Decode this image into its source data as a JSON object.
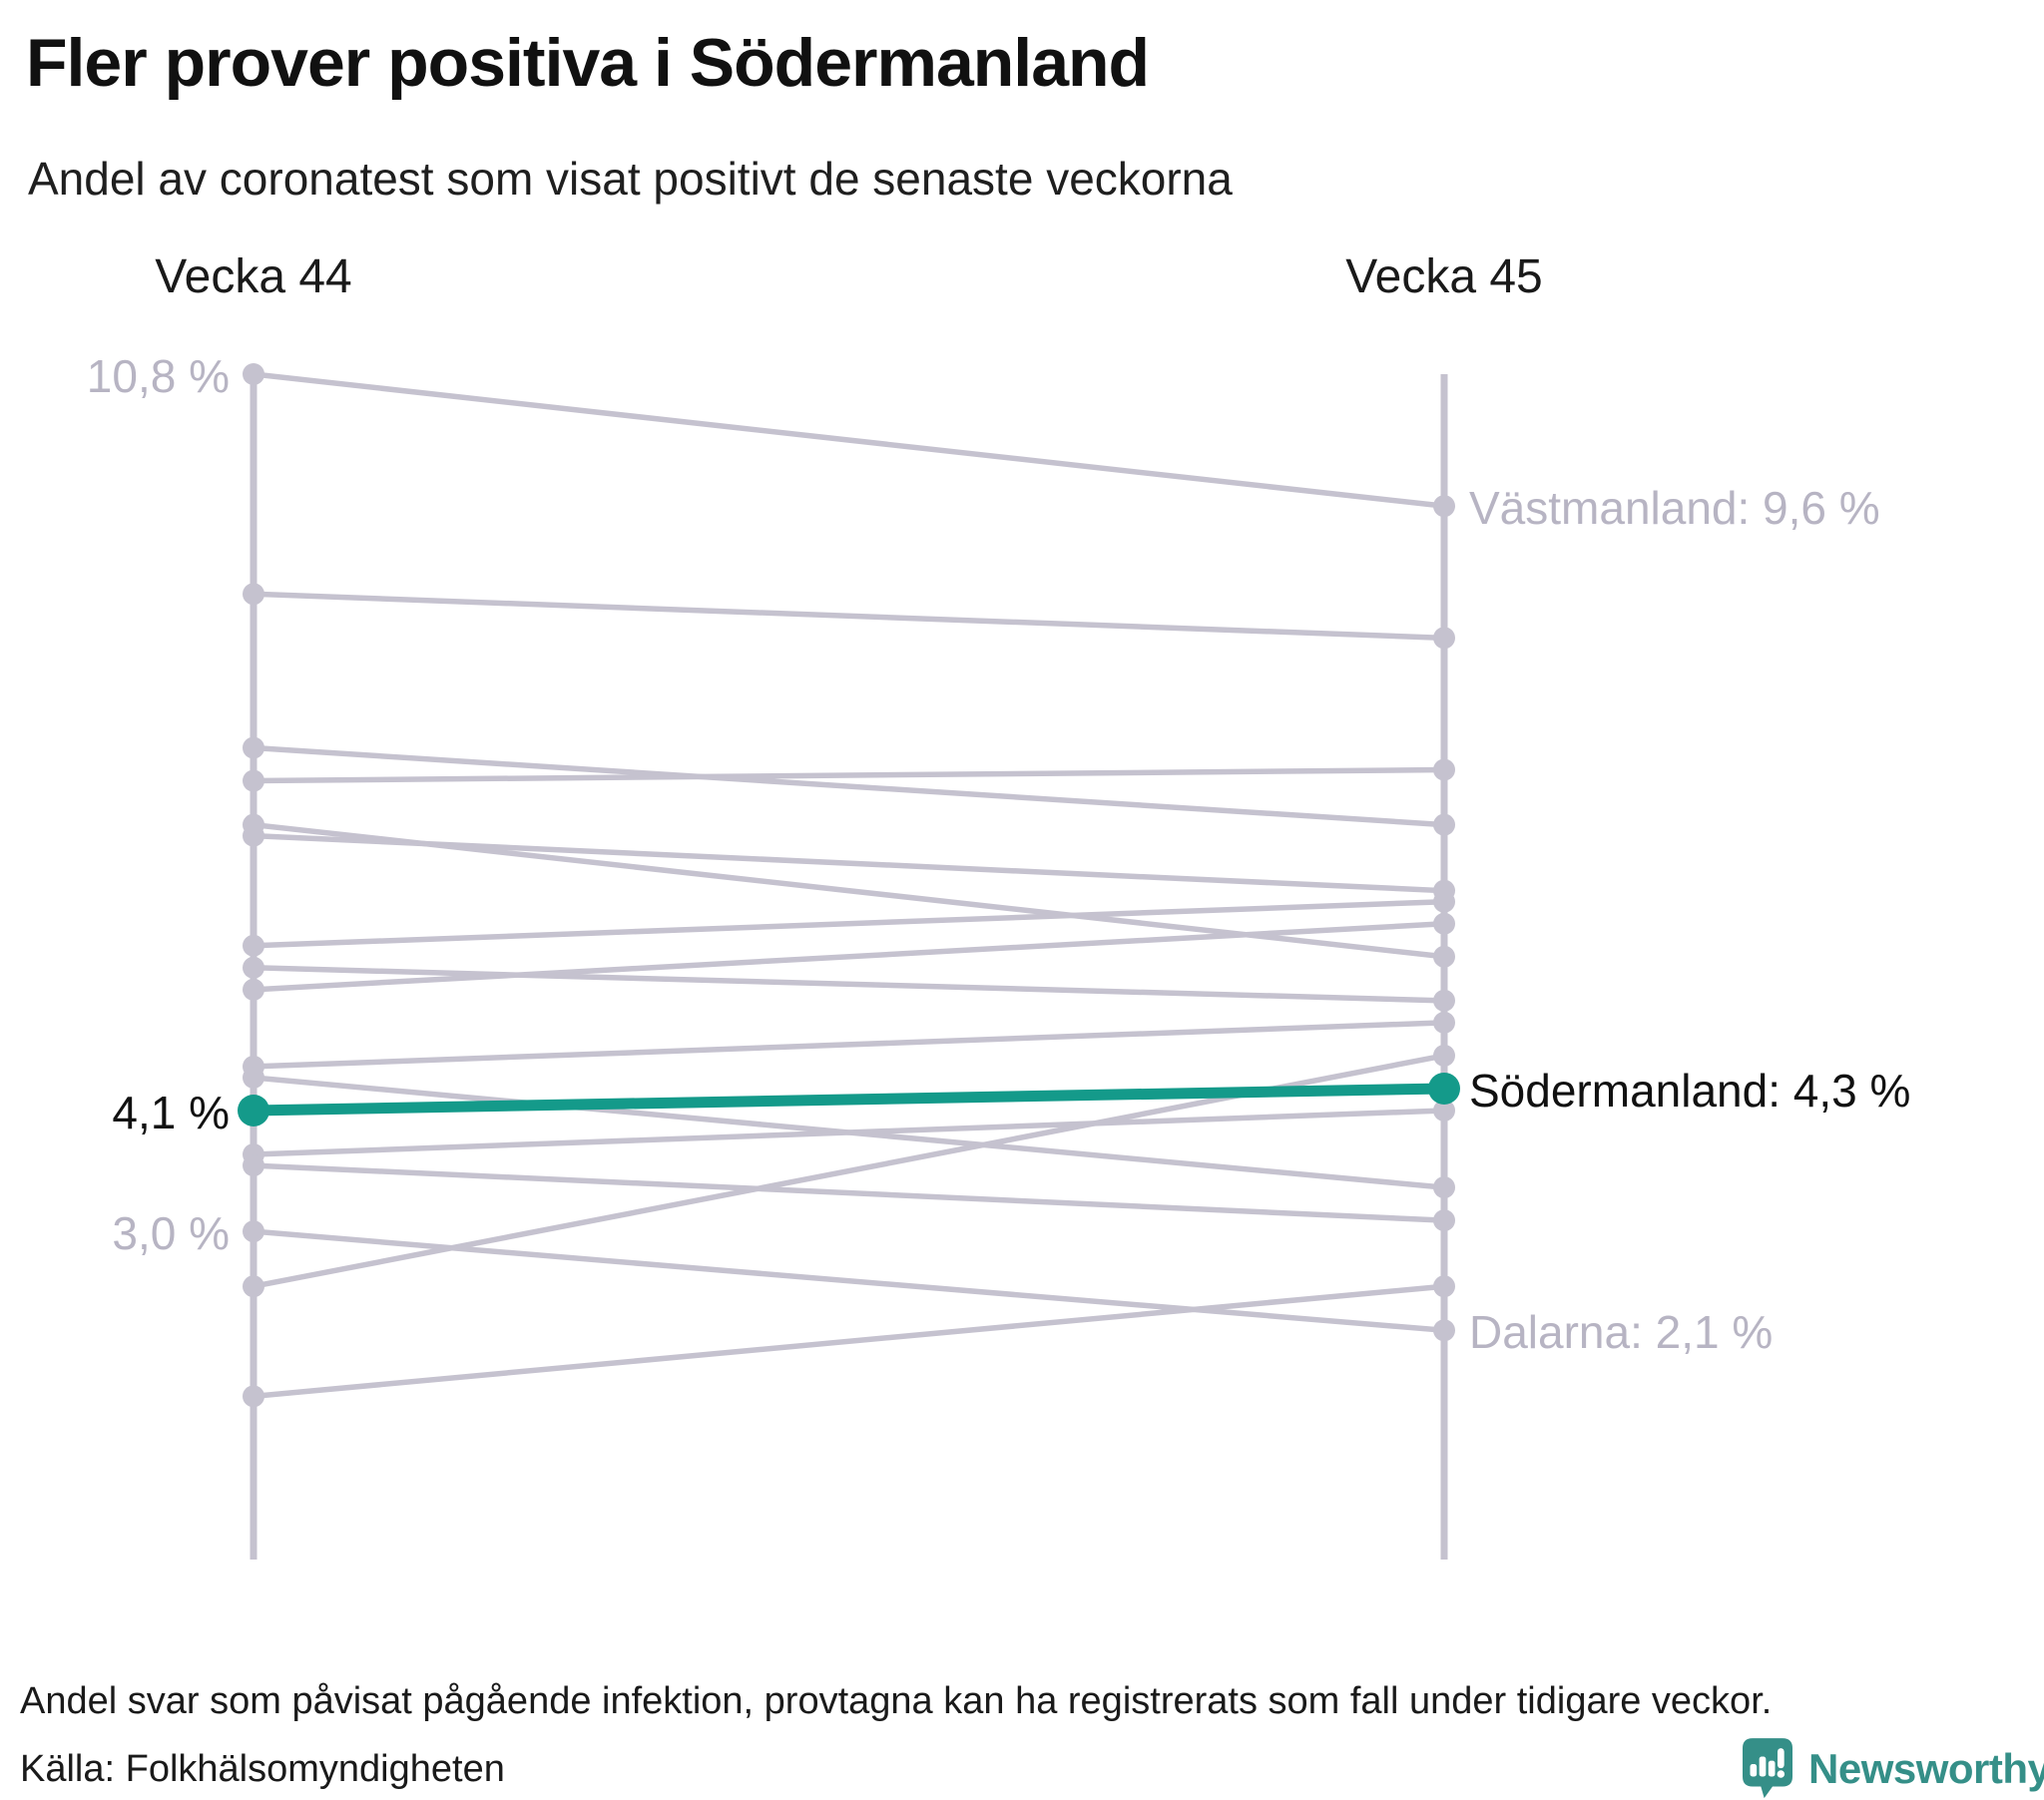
{
  "header": {
    "title": "Fler prover positiva i Södermanland",
    "subtitle": "Andel av coronatest som visat positivt de senaste veckorna"
  },
  "chart_data": {
    "type": "line",
    "subtype": "slopegraph",
    "columns": [
      "Vecka 44",
      "Vecka 45"
    ],
    "unit": "%",
    "ylim": [
      1.0,
      10.8
    ],
    "grid": false,
    "series": [
      {
        "name": "Västmanland",
        "values": [
          10.8,
          9.6
        ],
        "highlight": false
      },
      {
        "name": null,
        "values": [
          8.8,
          8.4
        ],
        "highlight": false
      },
      {
        "name": null,
        "values": [
          7.4,
          6.7
        ],
        "highlight": false
      },
      {
        "name": null,
        "values": [
          7.1,
          7.2
        ],
        "highlight": false
      },
      {
        "name": null,
        "values": [
          6.7,
          5.5
        ],
        "highlight": false
      },
      {
        "name": null,
        "values": [
          6.6,
          6.1
        ],
        "highlight": false
      },
      {
        "name": null,
        "values": [
          5.6,
          6.0
        ],
        "highlight": false
      },
      {
        "name": null,
        "values": [
          5.4,
          5.1
        ],
        "highlight": false
      },
      {
        "name": null,
        "values": [
          5.2,
          5.8
        ],
        "highlight": false
      },
      {
        "name": null,
        "values": [
          4.5,
          4.9
        ],
        "highlight": false
      },
      {
        "name": null,
        "values": [
          4.4,
          3.4
        ],
        "highlight": false
      },
      {
        "name": "Södermanland",
        "values": [
          4.1,
          4.3
        ],
        "highlight": true
      },
      {
        "name": null,
        "values": [
          3.7,
          4.1
        ],
        "highlight": false
      },
      {
        "name": null,
        "values": [
          3.6,
          3.1
        ],
        "highlight": false
      },
      {
        "name": "Dalarna",
        "values": [
          3.0,
          2.1
        ],
        "highlight": false
      },
      {
        "name": null,
        "values": [
          2.5,
          4.6
        ],
        "highlight": false
      },
      {
        "name": null,
        "values": [
          1.5,
          2.5
        ],
        "highlight": false
      }
    ],
    "left_axis_labels": [
      {
        "text": "10,8 %",
        "value": 10.8,
        "emphasis": false
      },
      {
        "text": "4,1 %",
        "value": 4.1,
        "emphasis": true
      },
      {
        "text": "3,0 %",
        "value": 3.0,
        "emphasis": false
      }
    ],
    "right_labels": [
      {
        "text": "Västmanland: 9,6 %",
        "value": 9.6,
        "emphasis": false
      },
      {
        "text": "Södermanland: 4,3 %",
        "value": 4.3,
        "emphasis": true
      },
      {
        "text": "Dalarna: 2,1 %",
        "value": 2.1,
        "emphasis": false
      }
    ],
    "colors": {
      "highlight": "#149a8a",
      "line": "#c5c2cf",
      "muted_label": "#b7b4c3",
      "text": "#1a1a1a"
    }
  },
  "footer": {
    "note": "Andel svar som påvisat pågående infektion, provtagna kan ha registrerats som fall under tidigare veckor.",
    "source": "Källa: Folkhälsomyndigheten",
    "brand": "Newsworthy",
    "brand_color": "#358f88"
  }
}
